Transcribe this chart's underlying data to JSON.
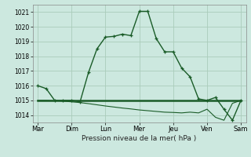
{
  "title": "",
  "xlabel": "Pression niveau de la mer( hPa )",
  "background_color": "#cce8df",
  "grid_color": "#aaccbb",
  "line_color": "#1a5c28",
  "ylim": [
    1013.5,
    1021.5
  ],
  "yticks": [
    1014,
    1015,
    1016,
    1017,
    1018,
    1019,
    1020,
    1021
  ],
  "day_labels": [
    "Mar",
    "Dim",
    "Lun",
    "Mer",
    "Jeu",
    "Ven",
    "Sam"
  ],
  "day_x_positions": [
    0,
    2,
    4,
    6,
    8,
    10,
    12
  ],
  "series1_x": [
    0,
    0.5,
    1.0,
    1.5,
    2.0,
    2.5,
    3.0,
    3.5,
    4.0,
    4.5,
    5.0,
    5.5,
    6.0,
    6.5,
    7.0,
    7.5,
    8.0,
    8.5,
    9.0,
    9.5,
    10.0,
    10.5,
    11.0,
    11.5,
    12.0
  ],
  "series1_y": [
    1016.0,
    1015.8,
    1015.0,
    1015.0,
    1015.0,
    1014.9,
    1016.9,
    1018.5,
    1019.3,
    1019.35,
    1019.5,
    1019.4,
    1021.05,
    1021.05,
    1019.2,
    1018.3,
    1018.3,
    1017.2,
    1016.6,
    1015.1,
    1015.0,
    1015.2,
    1014.4,
    1013.65,
    1015.0
  ],
  "series2_x": [
    0,
    0.5,
    1.0,
    1.5,
    2.0,
    2.5,
    3.0,
    3.5,
    4.0,
    4.5,
    5.0,
    5.5,
    6.0,
    6.5,
    7.0,
    7.5,
    8.0,
    8.5,
    9.0,
    9.5,
    10.0,
    10.5,
    11.0,
    11.5,
    12.0
  ],
  "series2_y": [
    1015.0,
    1015.0,
    1015.0,
    1015.0,
    1015.0,
    1015.0,
    1015.0,
    1015.0,
    1015.0,
    1015.0,
    1015.0,
    1015.0,
    1015.0,
    1015.0,
    1015.0,
    1015.0,
    1015.0,
    1015.0,
    1015.0,
    1015.0,
    1015.0,
    1015.0,
    1015.0,
    1015.0,
    1015.0
  ],
  "series3_x": [
    0,
    0.5,
    1.0,
    1.5,
    2.0,
    2.5,
    3.0,
    3.5,
    4.0,
    4.5,
    5.0,
    5.5,
    6.0,
    6.5,
    7.0,
    7.5,
    8.0,
    8.5,
    9.0,
    9.5,
    10.0,
    10.5,
    11.0,
    11.5,
    12.0
  ],
  "series3_y": [
    1015.0,
    1015.0,
    1014.98,
    1014.95,
    1014.9,
    1014.85,
    1014.78,
    1014.7,
    1014.62,
    1014.55,
    1014.48,
    1014.42,
    1014.35,
    1014.3,
    1014.25,
    1014.2,
    1014.18,
    1014.15,
    1014.2,
    1014.15,
    1014.4,
    1013.85,
    1013.65,
    1014.8,
    1015.0
  ]
}
